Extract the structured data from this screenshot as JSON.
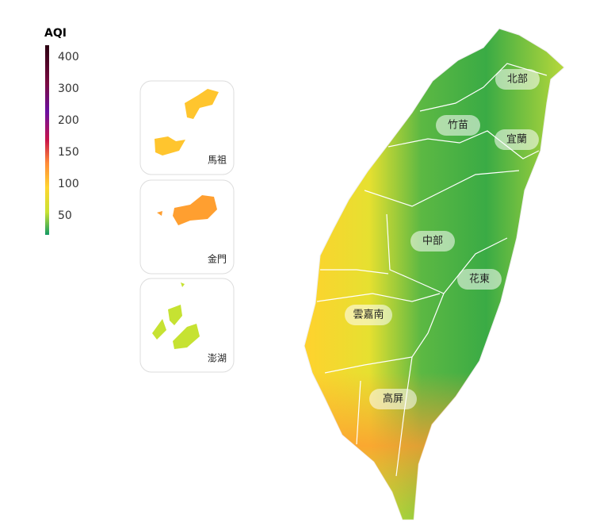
{
  "legend": {
    "title": "AQI",
    "ticks": [
      "400",
      "300",
      "200",
      "150",
      "100",
      "50"
    ]
  },
  "insets": [
    {
      "label": "馬祖"
    },
    {
      "label": "金門"
    },
    {
      "label": "澎湖"
    }
  ],
  "regions": [
    {
      "label": "北部"
    },
    {
      "label": "竹苗"
    },
    {
      "label": "宜蘭"
    },
    {
      "label": "中部"
    },
    {
      "label": "花東"
    },
    {
      "label": "雲嘉南"
    },
    {
      "label": "高屏"
    }
  ]
}
